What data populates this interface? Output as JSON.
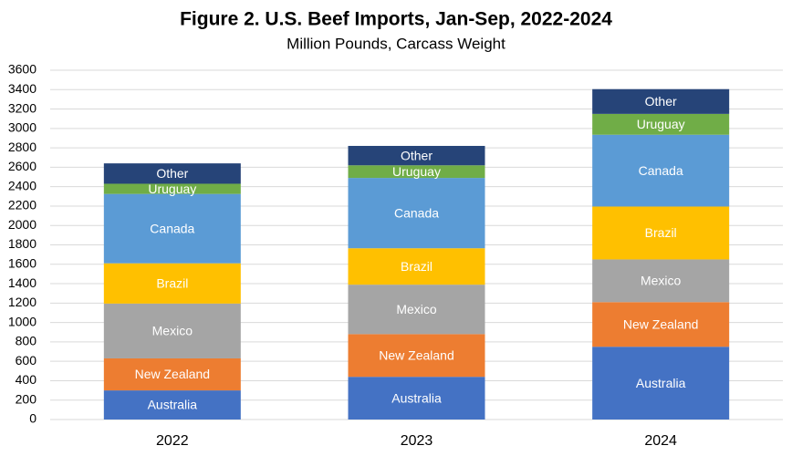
{
  "chart_data": {
    "type": "stacked_bar",
    "title": "Figure 2. U.S. Beef Imports, Jan-Sep,  2022-2024",
    "subtitle": "Million Pounds, Carcass Weight",
    "categories": [
      "2022",
      "2023",
      "2024"
    ],
    "series": [
      {
        "name": "Australia",
        "color": "#4472c4",
        "values": [
          300,
          440,
          750
        ]
      },
      {
        "name": "New Zealand",
        "color": "#ed7d31",
        "values": [
          330,
          440,
          460
        ]
      },
      {
        "name": "Mexico",
        "color": "#a5a5a5",
        "values": [
          565,
          510,
          440
        ]
      },
      {
        "name": "Brazil",
        "color": "#ffc000",
        "values": [
          415,
          375,
          545
        ]
      },
      {
        "name": "Canada",
        "color": "#5b9bd5",
        "values": [
          715,
          725,
          740
        ]
      },
      {
        "name": "Uruguay",
        "color": "#70ad47",
        "values": [
          105,
          130,
          215
        ]
      },
      {
        "name": "Other",
        "color": "#264478",
        "values": [
          210,
          200,
          255
        ]
      }
    ],
    "ylim": [
      0,
      3600
    ],
    "yticks": [
      0,
      200,
      400,
      600,
      800,
      1000,
      1200,
      1400,
      1600,
      1800,
      2000,
      2200,
      2400,
      2600,
      2800,
      3000,
      3200,
      3400,
      3600
    ],
    "grid": true
  }
}
